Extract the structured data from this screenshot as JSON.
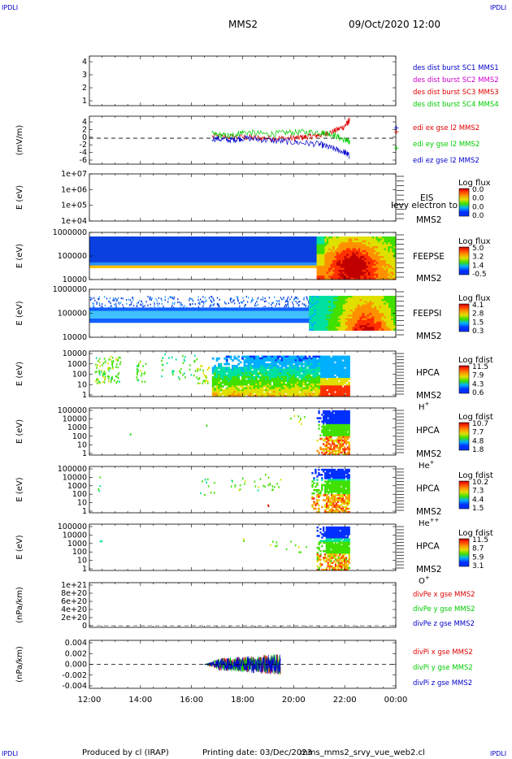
{
  "header": {
    "corner_label": "IPDLI",
    "spacecraft": "MMS2",
    "datetime": "09/Oct/2020 12:00"
  },
  "footer": {
    "produced_by": "Produced by cl (IRAP)",
    "printing_date": "Printing date: 03/Dec/2023",
    "script_name": "mms_mms2_srvy_vue_web2.cl"
  },
  "colors": {
    "red": "#e00000",
    "green": "#00cc00",
    "blue": "#0000cc",
    "magenta": "#d000d0",
    "black": "#000000"
  },
  "chart_data": [
    {
      "type": "line",
      "id": "des-dist-burst",
      "ylabel": "",
      "ylim": [
        0.5,
        4.5
      ],
      "yticks": [
        "1",
        "2",
        "3",
        "4"
      ],
      "series": [
        {
          "name": "des dist burst SC1 MMS1",
          "color": "#0000cc",
          "values": []
        },
        {
          "name": "des dist burst SC2 MMS2",
          "color": "#d000d0",
          "values": []
        },
        {
          "name": "des dist burst SC3 MMS3",
          "color": "#e00000",
          "values": []
        },
        {
          "name": "des dist burst SC4 MMS4",
          "color": "#00cc00",
          "values": []
        }
      ]
    },
    {
      "type": "line",
      "id": "edi-e",
      "ylabel": "(mV/m)",
      "ylim": [
        -6.5,
        5.5
      ],
      "yticks": [
        "4",
        "2",
        "0",
        "-2",
        "-4",
        "-6"
      ],
      "zero_line": true,
      "series": [
        {
          "name": "edi ex gse l2 MMS2",
          "color": "#e00000",
          "x": [
            16.8,
            18,
            19,
            20,
            20.5,
            21,
            21.5,
            22,
            22.2
          ],
          "values": [
            0.5,
            0.2,
            0,
            0,
            0.3,
            0.8,
            1.5,
            3,
            4.5
          ]
        },
        {
          "name": "edi ey gse l2 MMS2",
          "color": "#00cc00",
          "x": [
            16.8,
            17.5,
            18,
            19,
            20,
            21,
            21.5,
            22,
            22.2
          ],
          "values": [
            1,
            0.5,
            1.5,
            1,
            1.5,
            1.5,
            1,
            -0.5,
            -1
          ]
        },
        {
          "name": "edi ez gse l2 MMS2",
          "color": "#0000cc",
          "x": [
            16.8,
            17.5,
            18,
            19,
            20,
            21,
            21.5,
            22,
            22.2
          ],
          "values": [
            0,
            -0.5,
            0,
            -0.5,
            -1,
            -1.5,
            -2.5,
            -3.5,
            -4.5
          ]
        }
      ]
    },
    {
      "type": "heatmap",
      "id": "eis",
      "ylabel": "E (eV)",
      "yticks": [
        "1e+07",
        "1e+06",
        "1e+05",
        "1e+04"
      ],
      "instrument": [
        "EIS",
        "MMS2"
      ],
      "overlay_text": "Ievy electron to",
      "colorbar": {
        "title": "Log flux",
        "ticks": [
          "0.0",
          "0.0",
          "0.0",
          "0.0"
        ]
      }
    },
    {
      "type": "heatmap",
      "id": "feepse",
      "ylabel": "E (eV)",
      "yticks": [
        "1000000",
        "100000",
        "10000"
      ],
      "instrument": [
        "FEEPSE",
        "MMS2"
      ],
      "colorbar": {
        "title": "Log flux",
        "ticks": [
          "5.0",
          "3.2",
          "1.4",
          "-0.5"
        ]
      }
    },
    {
      "type": "heatmap",
      "id": "feepsi",
      "ylabel": "E (eV)",
      "yticks": [
        "1000000",
        "100000",
        "10000"
      ],
      "instrument": [
        "FEEPSI",
        "MMS2"
      ],
      "colorbar": {
        "title": "Log flux",
        "ticks": [
          "4.1",
          "2.8",
          "1.5",
          "0.3"
        ]
      }
    },
    {
      "type": "heatmap",
      "id": "hpca-h",
      "ylabel": "E (eV)",
      "yticks": [
        "10000",
        "1000",
        "100",
        "10",
        "1"
      ],
      "instrument": [
        "HPCA",
        "MMS2"
      ],
      "species": "H",
      "species_charge": "+",
      "colorbar": {
        "title": "Log fdist",
        "ticks": [
          "11.5",
          "7.9",
          "4.3",
          "0.6"
        ]
      }
    },
    {
      "type": "heatmap",
      "id": "hpca-he",
      "ylabel": "E (eV)",
      "yticks": [
        "100000",
        "10000",
        "1000",
        "100",
        "10",
        "1"
      ],
      "instrument": [
        "HPCA",
        "MMS2"
      ],
      "species": "He",
      "species_charge": "+",
      "colorbar": {
        "title": "Log fdist",
        "ticks": [
          "10.7",
          "7.7",
          "4.8",
          "1.8"
        ]
      }
    },
    {
      "type": "heatmap",
      "id": "hpca-hepp",
      "ylabel": "E (eV)",
      "yticks": [
        "100000",
        "10000",
        "1000",
        "100",
        "10",
        "1"
      ],
      "instrument": [
        "HPCA",
        "MMS2"
      ],
      "species": "He",
      "species_charge": "++",
      "colorbar": {
        "title": "Log fdist",
        "ticks": [
          "10.2",
          "7.3",
          "4.4",
          "1.5"
        ]
      }
    },
    {
      "type": "heatmap",
      "id": "hpca-o",
      "ylabel": "E (eV)",
      "yticks": [
        "100000",
        "10000",
        "1000",
        "100",
        "10",
        "1"
      ],
      "instrument": [
        "HPCA",
        "MMS2"
      ],
      "species": "O",
      "species_charge": "+",
      "colorbar": {
        "title": "Log fdist",
        "ticks": [
          "11.5",
          "8.7",
          "5.9",
          "3.1"
        ]
      }
    },
    {
      "type": "line",
      "id": "divpe",
      "ylabel": "(nPa/km)",
      "yticks": [
        "1e+21",
        "8e+20",
        "6e+20",
        "4e+20",
        "2e+20",
        "0"
      ],
      "series": [
        {
          "name": "divPe x gse MMS2",
          "color": "#e00000",
          "values": []
        },
        {
          "name": "divPe y gse MMS2",
          "color": "#00cc00",
          "values": []
        },
        {
          "name": "divPe z gse MMS2",
          "color": "#0000cc",
          "values": []
        }
      ]
    },
    {
      "type": "line",
      "id": "divpi",
      "ylabel": "(nPa/km)",
      "ylim": [
        -0.0045,
        0.0045
      ],
      "yticks": [
        "0.004",
        "0.002",
        "0.000",
        "-0.002",
        "-0.004"
      ],
      "zero_line": true,
      "x_range": [
        16.5,
        19.5
      ],
      "series": [
        {
          "name": "divPi x gse MMS2",
          "color": "#e00000",
          "amplitude": 0.002
        },
        {
          "name": "divPi y gse MMS2",
          "color": "#00cc00",
          "amplitude": 0.002
        },
        {
          "name": "divPi z gse MMS2",
          "color": "#0000cc",
          "amplitude": 0.002
        }
      ]
    }
  ],
  "time_axis": {
    "xlim": [
      12,
      24
    ],
    "tick_labels": [
      "12:00",
      "14:00",
      "16:00",
      "18:00",
      "20:00",
      "22:00",
      "00:00"
    ]
  }
}
